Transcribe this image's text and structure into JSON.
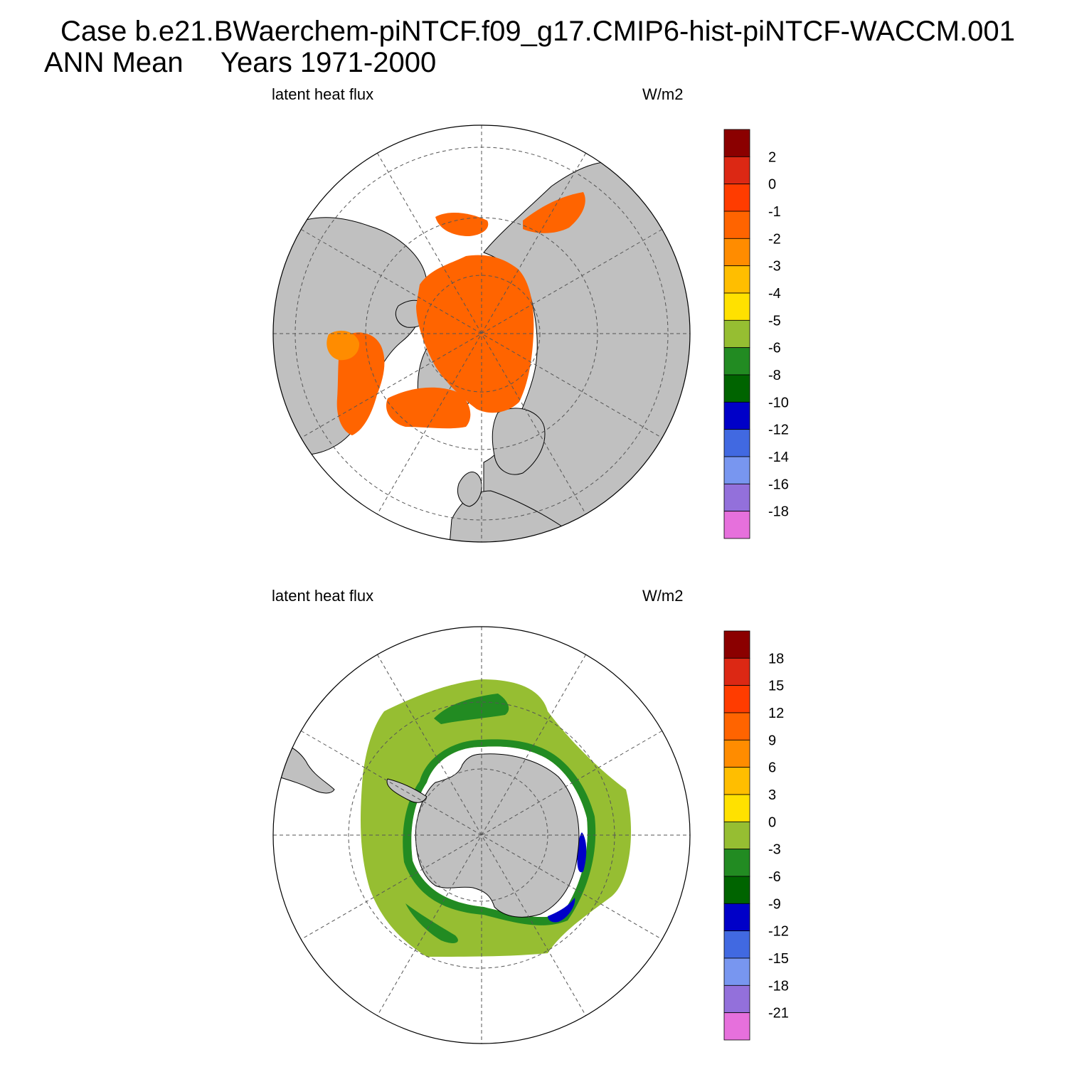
{
  "header": {
    "case_title": "Case b.e21.BWaerchem-piNTCF.f09_g17.CMIP6-hist-piNTCF-WACCM.001",
    "mean_label": "ANN Mean",
    "years_label": "Years 1971-2000"
  },
  "colors": {
    "land": "#c0c0c0",
    "ocean_missing": "#ffffff",
    "north_field": "#ff6400",
    "south_field": "#96be32"
  },
  "panels": [
    {
      "id": "north",
      "variable": "latent heat flux",
      "units": "W/m2",
      "projection": "north polar stereographic",
      "colorbar": {
        "labels": [
          "2",
          "0",
          "-1",
          "-2",
          "-3",
          "-4",
          "-5",
          "-6",
          "-8",
          "-10",
          "-12",
          "-14",
          "-16",
          "-18"
        ],
        "colors": [
          "#8b0000",
          "#dc2814",
          "#ff3c00",
          "#ff6400",
          "#ff8c00",
          "#ffbe00",
          "#ffe100",
          "#96be32",
          "#228b22",
          "#006400",
          "#0000c8",
          "#4169e1",
          "#7896f0",
          "#9370db",
          "#e670dc"
        ]
      }
    },
    {
      "id": "south",
      "variable": "latent heat flux",
      "units": "W/m2",
      "projection": "south polar stereographic",
      "colorbar": {
        "labels": [
          "18",
          "15",
          "12",
          "9",
          "6",
          "3",
          "0",
          "-3",
          "-6",
          "-9",
          "-12",
          "-15",
          "-18",
          "-21"
        ],
        "colors": [
          "#8b0000",
          "#dc2814",
          "#ff3c00",
          "#ff6400",
          "#ff8c00",
          "#ffbe00",
          "#ffe100",
          "#96be32",
          "#228b22",
          "#006400",
          "#0000c8",
          "#4169e1",
          "#7896f0",
          "#9370db",
          "#e670dc"
        ]
      }
    }
  ]
}
